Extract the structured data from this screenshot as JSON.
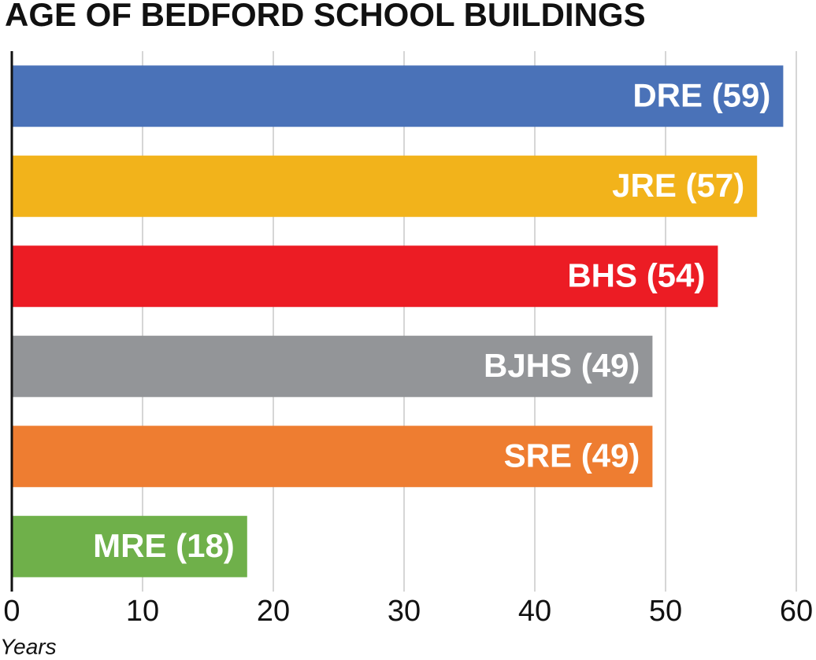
{
  "chart_data": {
    "type": "hbar",
    "title": "AGE OF BEDFORD SCHOOL BUILDINGS",
    "values": [
      59,
      57,
      54,
      49,
      49,
      18
    ],
    "value_labels": [
      "DRE (59)",
      "JRE (57)",
      "BHS (54)",
      "BJHS (49)",
      "SRE (49)",
      "MRE (18)"
    ],
    "colors": [
      "#4a72b8",
      "#f2b31b",
      "#ec1c24",
      "#939598",
      "#ee7d31",
      "#6fb04a"
    ],
    "xlabel": "Years",
    "xlim": [
      0,
      60
    ],
    "xticks": [
      0,
      10,
      20,
      30,
      40,
      50,
      60
    ],
    "grid": true
  }
}
